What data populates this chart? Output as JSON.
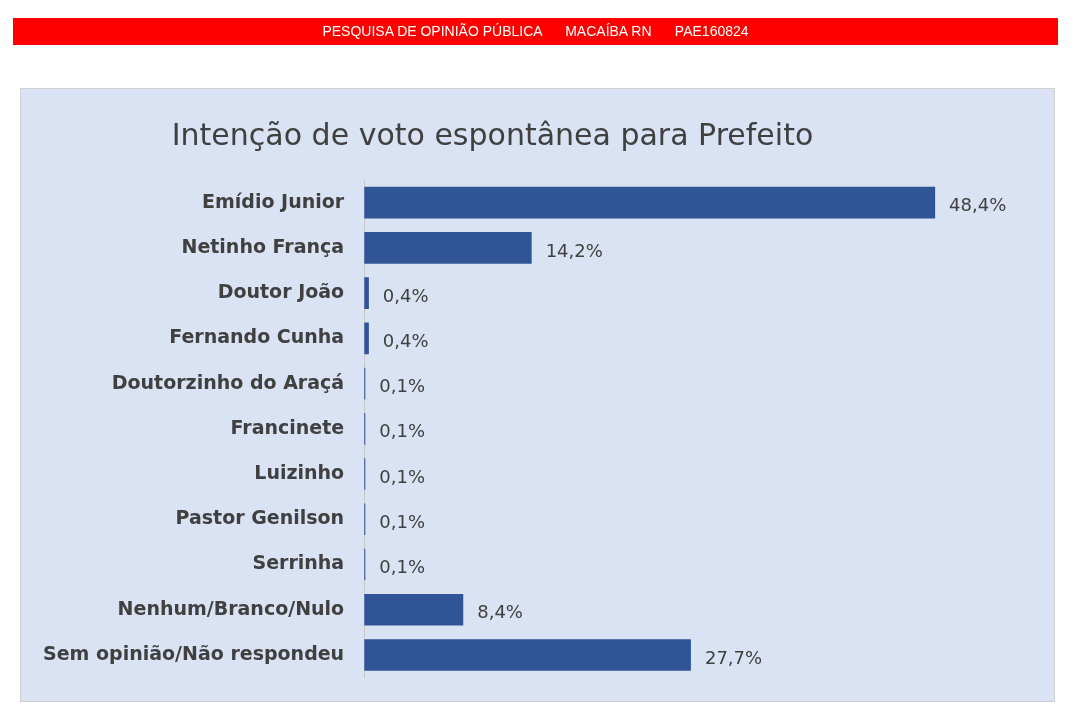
{
  "chart_data": {
    "type": "bar",
    "orientation": "horizontal",
    "title": "Intenção de voto espontânea para Prefeito",
    "annotations": [
      "PESQUISA DE OPINIÃO PÚBLICA      MACAÍBA RN      PAE160824"
    ],
    "categories": [
      "Emídio Junior",
      "Netinho França",
      "Doutor João",
      "Fernando Cunha",
      "Doutorzinho do Araçá",
      "Francinete",
      "Luizinho",
      "Pastor Genilson",
      "Serrinha",
      "Nenhum/Branco/Nulo",
      "Sem opinião/Não respondeu"
    ],
    "values": [
      48.4,
      14.2,
      0.4,
      0.4,
      0.1,
      0.1,
      0.1,
      0.1,
      0.1,
      8.4,
      27.7
    ],
    "value_labels": [
      "48,4%",
      "14,2%",
      "0,4%",
      "0,4%",
      "0,1%",
      "0,1%",
      "0,1%",
      "0,1%",
      "0,1%",
      "8,4%",
      "27,7%"
    ],
    "color": "#2f5597",
    "legend": false
  }
}
